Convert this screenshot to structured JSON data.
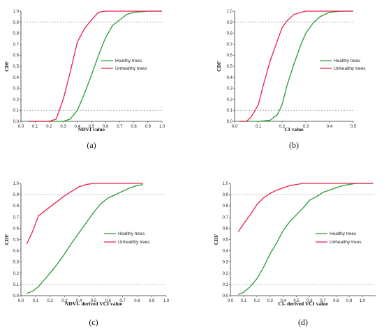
{
  "colors": {
    "healthy": "#2a9a36",
    "unhealthy": "#e8204a",
    "ref_line": "#9aa3ad",
    "axis": "#333333"
  },
  "chart_data": [
    {
      "type": "line",
      "panel_label": "(a)",
      "xlabel": "NDVI value",
      "ylabel": "CDF",
      "xlim": [
        0.0,
        1.0
      ],
      "ylim": [
        0.0,
        1.0
      ],
      "xticks": [
        "0.0",
        "0.1",
        "0.2",
        "0.3",
        "0.4",
        "0.5",
        "0.6",
        "0.7",
        "0.8",
        "0.9",
        "1.0"
      ],
      "yticks": [
        "0.0",
        "0.1",
        "0.2",
        "0.3",
        "0.4",
        "0.5",
        "0.6",
        "0.7",
        "0.8",
        "0.9",
        "1.0"
      ],
      "reference_lines": [
        0.1,
        0.9
      ],
      "legend_position": "right",
      "series": [
        {
          "name": "Healthy trees",
          "color_key": "healthy",
          "x": [
            0.05,
            0.2,
            0.25,
            0.3,
            0.35,
            0.4,
            0.45,
            0.5,
            0.55,
            0.6,
            0.65,
            0.7,
            0.75,
            0.8,
            0.9,
            1.0
          ],
          "y": [
            0,
            0,
            0,
            0,
            0.02,
            0.1,
            0.25,
            0.42,
            0.6,
            0.76,
            0.87,
            0.92,
            0.97,
            0.99,
            1.0,
            1.0
          ]
        },
        {
          "name": "Unhealthy trees",
          "color_key": "unhealthy",
          "x": [
            0.05,
            0.2,
            0.25,
            0.3,
            0.35,
            0.4,
            0.45,
            0.5,
            0.55,
            0.6,
            0.65,
            0.7,
            0.8,
            1.0
          ],
          "y": [
            0,
            0,
            0.02,
            0.2,
            0.45,
            0.72,
            0.84,
            0.92,
            0.99,
            1.0,
            1.0,
            1.0,
            1.0,
            1.0
          ]
        }
      ]
    },
    {
      "type": "line",
      "panel_label": "(b)",
      "xlabel": "CI value",
      "ylabel": "CDF",
      "xlim": [
        0.0,
        0.5
      ],
      "ylim": [
        0.0,
        1.0
      ],
      "xticks": [
        "0.0",
        "0.1",
        "0.2",
        "0.3",
        "0.4",
        "0.5"
      ],
      "yticks": [
        "0.0",
        "0.1",
        "0.2",
        "0.3",
        "0.4",
        "0.5",
        "0.6",
        "0.7",
        "0.8",
        "0.9",
        "1.0"
      ],
      "reference_lines": [
        0.1,
        0.9
      ],
      "legend_position": "right",
      "series": [
        {
          "name": "Healthy trees",
          "color_key": "healthy",
          "x": [
            0.02,
            0.1,
            0.15,
            0.18,
            0.2,
            0.22,
            0.25,
            0.28,
            0.3,
            0.33,
            0.36,
            0.4,
            0.45,
            0.5
          ],
          "y": [
            0,
            0,
            0.01,
            0.06,
            0.15,
            0.32,
            0.52,
            0.7,
            0.8,
            0.89,
            0.95,
            0.99,
            1.0,
            1.0
          ]
        },
        {
          "name": "Unhealthy trees",
          "color_key": "unhealthy",
          "x": [
            0.02,
            0.05,
            0.07,
            0.1,
            0.12,
            0.15,
            0.18,
            0.2,
            0.22,
            0.25,
            0.28,
            0.3,
            0.35,
            0.5
          ],
          "y": [
            0,
            0,
            0.04,
            0.15,
            0.32,
            0.55,
            0.73,
            0.85,
            0.91,
            0.97,
            0.99,
            1.0,
            1.0,
            1.0
          ]
        }
      ]
    },
    {
      "type": "line",
      "panel_label": "(c)",
      "xlabel": "NDVI- derived VCI value",
      "ylabel": "CDF",
      "xlim": [
        0.0,
        1.0
      ],
      "ylim": [
        0.0,
        1.0
      ],
      "xticks": [
        "0.0",
        "0.1",
        "0.2",
        "0.3",
        "0.4",
        "0.5",
        "0.6",
        "0.7",
        "0.8",
        "0.9",
        "1.0"
      ],
      "yticks": [
        "0.0",
        "0.1",
        "0.2",
        "0.3",
        "0.4",
        "0.5",
        "0.6",
        "0.7",
        "0.8",
        "0.9",
        "1.0"
      ],
      "reference_lines": [
        0.1,
        0.9
      ],
      "legend_position": "right",
      "series": [
        {
          "name": "Healthy trees",
          "color_key": "healthy",
          "x": [
            0.04,
            0.08,
            0.12,
            0.16,
            0.2,
            0.25,
            0.3,
            0.35,
            0.4,
            0.45,
            0.5,
            0.55,
            0.6,
            0.65,
            0.7,
            0.75,
            0.8,
            0.84
          ],
          "y": [
            0.02,
            0.04,
            0.08,
            0.14,
            0.2,
            0.28,
            0.37,
            0.47,
            0.56,
            0.65,
            0.74,
            0.82,
            0.87,
            0.9,
            0.93,
            0.96,
            0.98,
            0.99
          ]
        },
        {
          "name": "Unhealthy trees",
          "color_key": "unhealthy",
          "x": [
            0.04,
            0.08,
            0.12,
            0.2,
            0.25,
            0.3,
            0.35,
            0.4,
            0.45,
            0.5,
            0.55,
            0.6,
            0.7,
            0.84
          ],
          "y": [
            0.46,
            0.57,
            0.71,
            0.79,
            0.84,
            0.89,
            0.93,
            0.97,
            0.99,
            1.0,
            1.0,
            1.0,
            1.0,
            1.0
          ]
        }
      ]
    },
    {
      "type": "line",
      "panel_label": "(d)",
      "xlabel": "CI- derived VCI value",
      "ylabel": "CDF",
      "xlim": [
        0.0,
        1.1
      ],
      "ylim": [
        0.0,
        1.0
      ],
      "xticks": [
        "0.0",
        "0.1",
        "0.2",
        "0.3",
        "0.4",
        "0.5",
        "0.6",
        "0.7",
        "0.8",
        "0.9",
        "1.0"
      ],
      "yticks": [
        "0.0",
        "0.1",
        "0.2",
        "0.3",
        "0.4",
        "0.5",
        "0.6",
        "0.7",
        "0.8",
        "0.9",
        "1.0"
      ],
      "reference_lines": [
        0.1,
        0.9
      ],
      "legend_position": "right",
      "series": [
        {
          "name": "Healthy trees",
          "color_key": "healthy",
          "x": [
            0.06,
            0.1,
            0.15,
            0.2,
            0.25,
            0.3,
            0.35,
            0.4,
            0.45,
            0.5,
            0.55,
            0.6,
            0.65,
            0.7,
            0.75,
            0.8,
            0.85,
            0.9,
            0.95,
            1.0,
            1.08
          ],
          "y": [
            0.01,
            0.03,
            0.08,
            0.15,
            0.25,
            0.37,
            0.47,
            0.58,
            0.66,
            0.72,
            0.78,
            0.85,
            0.88,
            0.92,
            0.94,
            0.96,
            0.98,
            0.99,
            1.0,
            1.0,
            1.0
          ]
        },
        {
          "name": "Unhealthy trees",
          "color_key": "unhealthy",
          "x": [
            0.06,
            0.1,
            0.15,
            0.2,
            0.25,
            0.3,
            0.35,
            0.4,
            0.45,
            0.5,
            0.55,
            0.6,
            0.7,
            0.8,
            1.08
          ],
          "y": [
            0.57,
            0.64,
            0.72,
            0.81,
            0.87,
            0.91,
            0.94,
            0.96,
            0.98,
            0.99,
            1.0,
            1.0,
            1.0,
            1.0,
            1.0
          ]
        }
      ]
    }
  ]
}
